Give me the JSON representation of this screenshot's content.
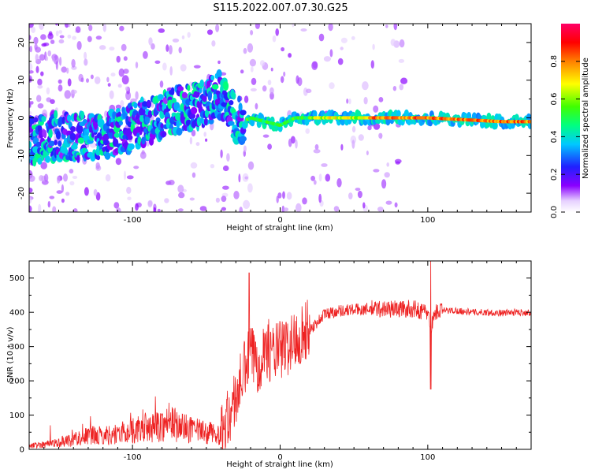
{
  "title": "S115.2022.007.07.30.G25",
  "chart_data": [
    {
      "type": "heatmap",
      "xlabel": "Height of straight line (km)",
      "ylabel": "Frequency (Hz)",
      "xlim": [
        -170,
        170
      ],
      "ylim": [
        -25,
        25
      ],
      "xticks": [
        -100,
        0,
        100
      ],
      "yticks": [
        -20,
        -10,
        0,
        10,
        20
      ],
      "colorbar": {
        "label": "Normalized spectral amplitude",
        "range": [
          0,
          1
        ],
        "ticks": [
          0.0,
          0.2,
          0.4,
          0.6,
          0.8
        ],
        "colormap": "rainbow (white-violet-blue-cyan-green-yellow-red-magenta)"
      },
      "ridge": {
        "x": [
          -170,
          -150,
          -130,
          -110,
          -90,
          -70,
          -50,
          -40,
          -35,
          -30,
          -25,
          -20,
          -10,
          0,
          10,
          50,
          100,
          150,
          170
        ],
        "y": [
          -6,
          -5,
          -5,
          -4,
          -1,
          2,
          4,
          6,
          3,
          -1,
          -1,
          0,
          -1,
          -2,
          0,
          0,
          0,
          -1,
          -1
        ]
      }
    },
    {
      "type": "line",
      "xlabel": "Height of straight line (km)",
      "ylabel": "SNR (10 * v/v)",
      "xlim": [
        -170,
        170
      ],
      "ylim": [
        0,
        550
      ],
      "xticks": [
        -100,
        0,
        100
      ],
      "yticks": [
        0,
        100,
        200,
        300,
        400,
        500
      ],
      "color": "#ee2222",
      "series": [
        {
          "x": [
            -170,
            -160,
            -150,
            -140,
            -130,
            -120,
            -110,
            -100,
            -90,
            -80,
            -75,
            -70,
            -60,
            -50,
            -40,
            -35,
            -30,
            -25,
            -20,
            -15,
            -10,
            -5,
            0,
            5,
            10,
            15,
            20,
            25,
            30,
            40,
            50,
            60,
            70,
            80,
            90,
            95,
            100,
            102,
            105,
            110,
            120,
            130,
            140,
            150,
            160,
            170
          ],
          "values": [
            10,
            15,
            20,
            30,
            40,
            40,
            45,
            55,
            60,
            70,
            80,
            70,
            55,
            50,
            40,
            90,
            150,
            220,
            280,
            250,
            300,
            280,
            290,
            300,
            320,
            340,
            350,
            370,
            395,
            405,
            408,
            410,
            410,
            410,
            410,
            405,
            400,
            350,
            400,
            405,
            405,
            400,
            400,
            398,
            400,
            400
          ]
        }
      ]
    }
  ]
}
